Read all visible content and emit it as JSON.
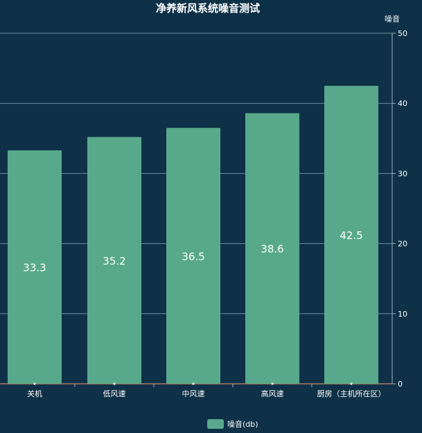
{
  "chart_data": {
    "type": "bar",
    "title": "净养新风系统噪音测试",
    "y_axis_name": "噪音",
    "categories": [
      "关机",
      "低风速",
      "中风速",
      "高风速",
      "厨房（主机所在区）"
    ],
    "series": [
      {
        "name": "噪音(db)",
        "values": [
          33.3,
          35.2,
          36.5,
          38.6,
          42.5
        ],
        "data_labels": [
          "33.3",
          "35.2",
          "36.5",
          "38.6",
          "42.5"
        ]
      }
    ],
    "y_ticks": [
      "0",
      "10",
      "20",
      "30",
      "40",
      "50"
    ],
    "ylim": [
      0,
      50
    ],
    "y_axis_position": "right",
    "grid": true,
    "legend_position": "bottom-center",
    "colors": {
      "background": "#0e3147",
      "bar": "#58a98b",
      "grid": "#6f8fa2",
      "axis": "#9fb3c2",
      "x_axis_line": "#b07a64",
      "text": "#ffffff"
    }
  }
}
